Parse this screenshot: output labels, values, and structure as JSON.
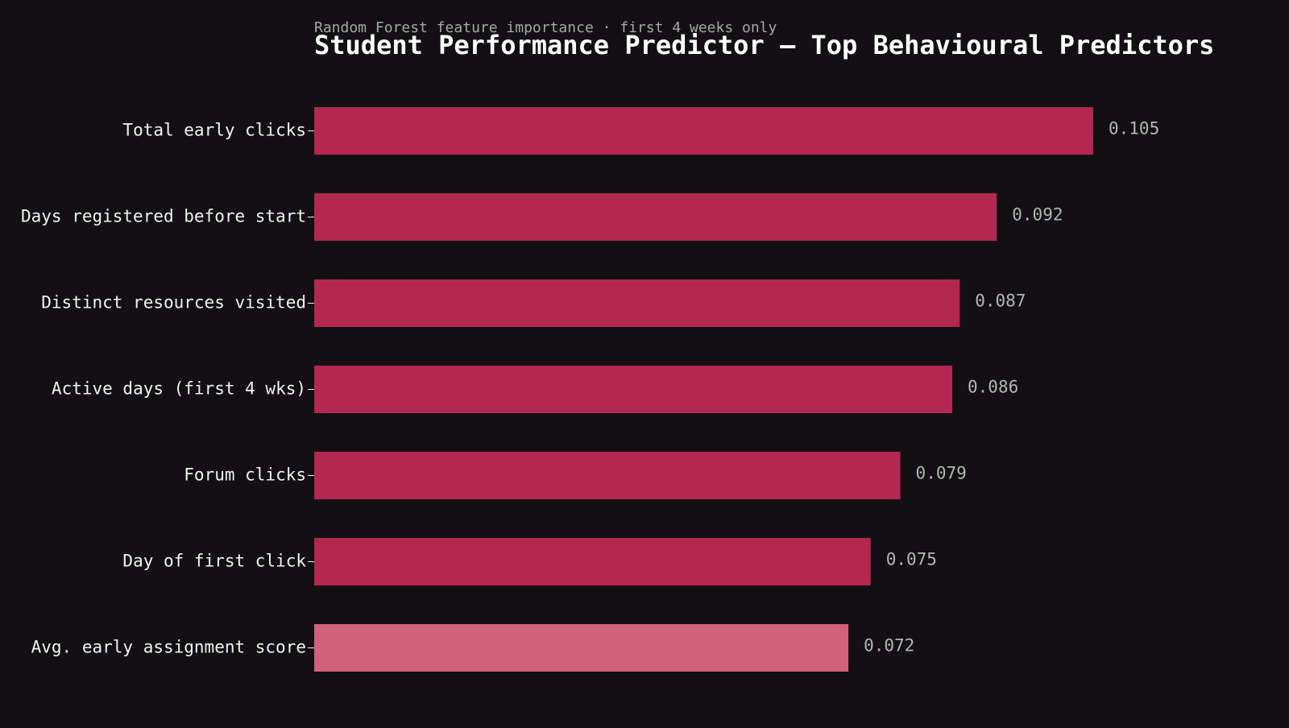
{
  "chart_data": {
    "type": "bar",
    "orientation": "horizontal",
    "title": "Student Performance Predictor — Top Behavioural Predictors",
    "subtitle": "Random Forest feature importance · first 4 weeks only",
    "categories": [
      "Total early clicks",
      "Days registered before start",
      "Distinct resources visited",
      "Active days (first 4 wks)",
      "Forum clicks",
      "Day of first click",
      "Avg. early assignment score"
    ],
    "values": [
      0.105,
      0.092,
      0.087,
      0.086,
      0.079,
      0.075,
      0.072
    ],
    "value_labels": [
      "0.105",
      "0.092",
      "0.087",
      "0.086",
      "0.079",
      "0.075",
      "0.072"
    ],
    "xlim": [
      0,
      0.105
    ],
    "grid": false,
    "legend": "none",
    "colors": {
      "background": "#121013",
      "bar": "#b3284f",
      "highlight_bar": "#d2607d",
      "title": "#ffffff",
      "subtitle": "#a7a7a7",
      "category_label": "#f2f2f2",
      "value_label": "#b5b5b5"
    },
    "highlight_index": 6
  }
}
